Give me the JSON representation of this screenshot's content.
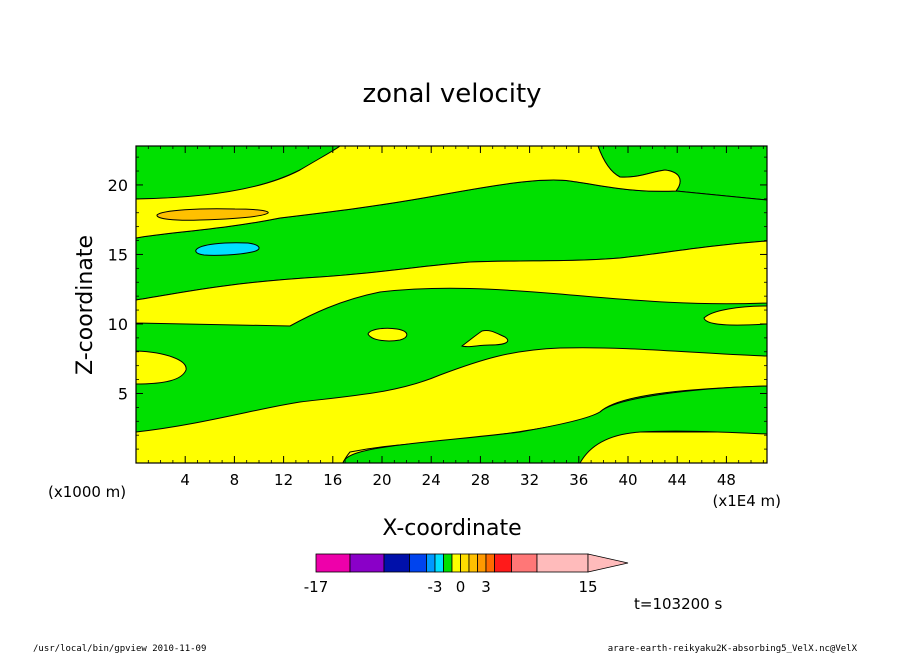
{
  "chart_data": {
    "type": "contour",
    "title": "zonal velocity",
    "xlabel": "X-coordinate",
    "ylabel": "Z-coordinate",
    "x_unit_label": "(x1E4 m)",
    "y_unit_label": "(x1000 m)",
    "xlim": [
      0,
      51.3
    ],
    "ylim": [
      0,
      22.8
    ],
    "x_ticks": [
      4,
      8,
      12,
      16,
      20,
      24,
      28,
      32,
      36,
      40,
      44,
      48
    ],
    "y_ticks": [
      5,
      10,
      15,
      20
    ],
    "colors": {
      "positive": "#ffff00",
      "near_zero": "#00e000",
      "orange_cell": "#ffc000",
      "cyan_cell": "#00e0ff"
    },
    "colorbar": {
      "colors": [
        "#ee00aa",
        "#8a00c8",
        "#0010aa",
        "#0044ee",
        "#0099ff",
        "#00e0ff",
        "#00e000",
        "#ffff00",
        "#ffdd00",
        "#ffc000",
        "#ff9900",
        "#ff6a00",
        "#ff1a1a",
        "#ff7777",
        "#ffbbbb"
      ],
      "tick_labels": [
        {
          "value": -17,
          "text": "-17"
        },
        {
          "value": -3,
          "text": "-3"
        },
        {
          "value": 0,
          "text": "0"
        },
        {
          "value": 3,
          "text": "3"
        },
        {
          "value": 15,
          "text": "15"
        }
      ]
    },
    "annotation_time": "t=103200 s"
  },
  "footer": {
    "left": "/usr/local/bin/gpview  2010-11-09",
    "right": "arare-earth-reikyaku2K-absorbing5_VelX.nc@VelX"
  }
}
